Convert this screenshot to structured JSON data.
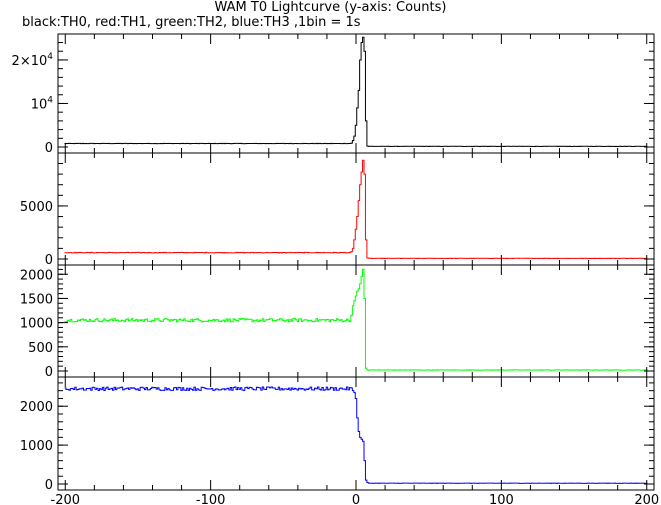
{
  "chart_data": {
    "type": "line",
    "title": "WAM T0 Lightcurve (y-axis: Counts)",
    "subtitle": "black:TH0, red:TH1, green:TH2, blue:TH3 ,1bin = 1s",
    "xlabel": "",
    "ylabel": "",
    "xlim": [
      -205,
      205
    ],
    "x_ticks": [
      "-200",
      "-100",
      "0",
      "100",
      "200"
    ],
    "x_tick_values": [
      -200,
      -100,
      0,
      100,
      200
    ],
    "grid": false,
    "panels": [
      {
        "name": "TH0",
        "color": "#000000",
        "ylim": [
          0,
          25500
        ],
        "y_ticks": [
          {
            "value": 0,
            "label": "0"
          },
          {
            "value": 10000,
            "label": "10",
            "sup": "4"
          },
          {
            "value": 20000,
            "label": "2×10",
            "sup": "4"
          }
        ],
        "baseline": 800,
        "noise": 40,
        "profile": [
          [
            -3,
            900
          ],
          [
            -2,
            1500
          ],
          [
            -1,
            2500
          ],
          [
            0,
            5000
          ],
          [
            1,
            9000
          ],
          [
            2,
            13000
          ],
          [
            3,
            20000
          ],
          [
            4,
            24000
          ],
          [
            5,
            25200
          ],
          [
            6,
            22000
          ],
          [
            7,
            6000
          ],
          [
            8,
            200
          ]
        ],
        "post": 150
      },
      {
        "name": "TH1",
        "color": "#ff0000",
        "ylim": [
          0,
          9800
        ],
        "y_ticks": [
          {
            "value": 0,
            "label": "0"
          },
          {
            "value": 5000,
            "label": "5000"
          }
        ],
        "baseline": 600,
        "noise": 25,
        "profile": [
          [
            -3,
            700
          ],
          [
            -2,
            1000
          ],
          [
            -1,
            1800
          ],
          [
            0,
            2800
          ],
          [
            1,
            4000
          ],
          [
            2,
            5500
          ],
          [
            3,
            7000
          ],
          [
            4,
            8200
          ],
          [
            5,
            9300
          ],
          [
            6,
            8000
          ],
          [
            7,
            1800
          ],
          [
            8,
            100
          ]
        ],
        "post": 60
      },
      {
        "name": "TH2",
        "color": "#00ff00",
        "ylim": [
          0,
          2150
        ],
        "y_ticks": [
          {
            "value": 0,
            "label": "0"
          },
          {
            "value": 500,
            "label": "500"
          },
          {
            "value": 1000,
            "label": "1000"
          },
          {
            "value": 1500,
            "label": "1500"
          },
          {
            "value": 2000,
            "label": "2000"
          }
        ],
        "baseline": 1050,
        "noise": 35,
        "profile": [
          [
            -3,
            1150
          ],
          [
            -2,
            1350
          ],
          [
            -1,
            1450
          ],
          [
            0,
            1550
          ],
          [
            1,
            1650
          ],
          [
            2,
            1700
          ],
          [
            3,
            1800
          ],
          [
            4,
            1950
          ],
          [
            5,
            2100
          ],
          [
            6,
            1500
          ],
          [
            7,
            60
          ]
        ],
        "post": 20
      },
      {
        "name": "TH3",
        "color": "#0000ff",
        "ylim": [
          0,
          2700
        ],
        "y_ticks": [
          {
            "value": 0,
            "label": "0"
          },
          {
            "value": 1000,
            "label": "1000"
          },
          {
            "value": 2000,
            "label": "2000"
          }
        ],
        "baseline": 2450,
        "noise": 45,
        "profile": [
          [
            -2,
            2400
          ],
          [
            -1,
            2350
          ],
          [
            0,
            2200
          ],
          [
            1,
            1700
          ],
          [
            2,
            1350
          ],
          [
            3,
            1200
          ],
          [
            4,
            1150
          ],
          [
            5,
            1100
          ],
          [
            6,
            600
          ],
          [
            7,
            100
          ],
          [
            8,
            40
          ]
        ],
        "post": 20
      }
    ]
  }
}
